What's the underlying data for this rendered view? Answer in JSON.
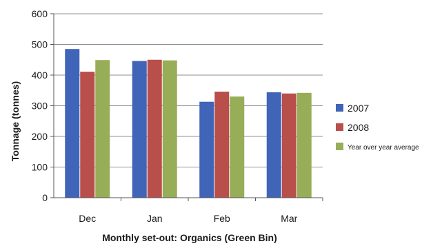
{
  "chart_data": {
    "type": "bar",
    "title": "",
    "xlabel": "Monthly set-out: Organics (Green Bin)",
    "ylabel": "Tonnage (tonnes)",
    "ylim": [
      0,
      600
    ],
    "yticks": [
      0,
      100,
      200,
      300,
      400,
      500,
      600
    ],
    "grid": true,
    "legend": "right",
    "categories": [
      "Dec",
      "Jan",
      "Feb",
      "Mar"
    ],
    "series": [
      {
        "name": "2007",
        "color": "#3f64b8",
        "values": [
          485,
          446,
          313,
          344
        ]
      },
      {
        "name": "2008",
        "color": "#b84f4b",
        "values": [
          411,
          450,
          346,
          340
        ]
      },
      {
        "name": "Year over year average",
        "color": "#98ad57",
        "values": [
          449,
          448,
          330,
          342
        ]
      }
    ]
  }
}
